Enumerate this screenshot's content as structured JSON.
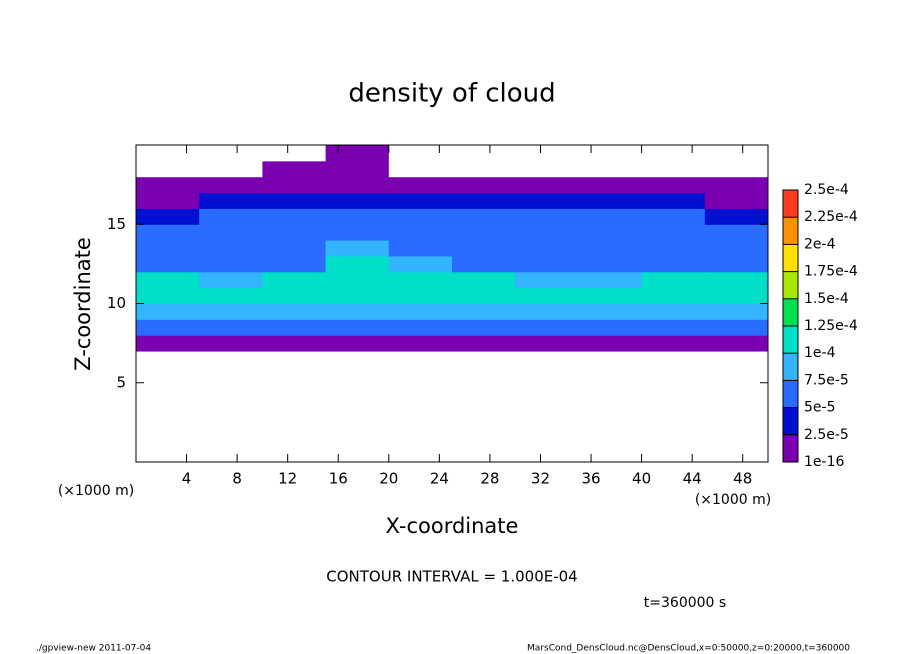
{
  "chart_data": {
    "type": "heatmap",
    "title": "density of cloud",
    "x_label": "X-coordinate",
    "y_label": "Z-coordinate",
    "x_unit_labels": [
      "(×1000 m)",
      "(×1000 m)"
    ],
    "contour_note": "CONTOUR INTERVAL = 1.000E-04",
    "time_note": "t=360000 s",
    "footer_left": "./gpview-new  2011-07-04",
    "footer_right": "MarsCond_DensCloud.nc@DensCloud,x=0:50000,z=0:20000,t=360000",
    "xlim": [
      0,
      50
    ],
    "xticks": [
      4,
      8,
      12,
      16,
      20,
      24,
      28,
      32,
      36,
      40,
      44,
      48
    ],
    "ylim": [
      0,
      20
    ],
    "yticks": [
      5,
      10,
      15
    ],
    "x": [
      2.5,
      7.5,
      12.5,
      17.5,
      22.5,
      27.5,
      32.5,
      37.5,
      42.5,
      47.5
    ],
    "y": [
      0.5,
      1.5,
      2.5,
      3.5,
      4.5,
      5.5,
      6.5,
      7.5,
      8.5,
      9.5,
      10.5,
      11.5,
      12.5,
      13.5,
      14.5,
      15.5,
      16.5,
      17.5,
      18.5,
      19.5
    ],
    "z": [
      [
        0,
        0,
        0,
        0,
        0,
        0,
        0,
        0,
        0,
        0
      ],
      [
        0,
        0,
        0,
        0,
        0,
        0,
        0,
        0,
        0,
        0
      ],
      [
        0,
        0,
        0,
        0,
        0,
        0,
        0,
        0,
        0,
        0
      ],
      [
        0,
        0,
        0,
        0,
        0,
        0,
        0,
        0,
        0,
        0
      ],
      [
        0,
        0,
        0,
        0,
        0,
        0,
        0,
        0,
        0,
        0
      ],
      [
        0,
        0,
        0,
        0,
        0,
        0,
        0,
        0,
        0,
        0
      ],
      [
        0,
        0,
        0,
        0,
        0,
        0,
        0,
        0,
        0,
        0
      ],
      [
        1e-05,
        1e-05,
        1e-05,
        1e-05,
        1e-05,
        1e-05,
        1e-05,
        1e-05,
        1e-05,
        1e-05
      ],
      [
        6e-05,
        6e-05,
        6e-05,
        6e-05,
        5e-05,
        6e-05,
        6e-05,
        6e-05,
        6e-05,
        6e-05
      ],
      [
        9e-05,
        9e-05,
        8e-05,
        9e-05,
        8e-05,
        9e-05,
        9e-05,
        9e-05,
        9e-05,
        9e-05
      ],
      [
        0.00011,
        0.00011,
        0.000105,
        0.00011,
        0.0001,
        0.000105,
        0.0001,
        0.000105,
        0.00011,
        0.00011
      ],
      [
        0.0001,
        8e-05,
        0.000105,
        0.000115,
        0.000105,
        0.0001,
        9e-05,
        9e-05,
        0.0001,
        0.0001
      ],
      [
        6e-05,
        6e-05,
        7e-05,
        0.00011,
        9e-05,
        7e-05,
        6e-05,
        6e-05,
        6e-05,
        6e-05
      ],
      [
        6e-05,
        6e-05,
        5e-05,
        8e-05,
        7e-05,
        6e-05,
        6e-05,
        6e-05,
        6e-05,
        6e-05
      ],
      [
        5e-05,
        6e-05,
        6e-05,
        6e-05,
        6e-05,
        6e-05,
        6e-05,
        6e-05,
        6e-05,
        5e-05
      ],
      [
        4e-05,
        5e-05,
        5e-05,
        5e-05,
        5e-05,
        5e-05,
        5e-05,
        5e-05,
        5e-05,
        4e-05
      ],
      [
        2e-05,
        3e-05,
        3e-05,
        3e-05,
        3e-05,
        3e-05,
        3e-05,
        3e-05,
        3e-05,
        2e-05
      ],
      [
        1e-05,
        1e-05,
        1e-05,
        1e-05,
        1e-05,
        1e-05,
        1e-05,
        1e-05,
        1e-05,
        1e-05
      ],
      [
        0,
        0,
        1e-05,
        1e-05,
        0,
        0,
        0,
        0,
        0,
        0
      ],
      [
        0,
        0,
        0,
        1e-05,
        0,
        0,
        0,
        0,
        0,
        0
      ]
    ],
    "color_levels": [
      {
        "value": 1e-16,
        "label": "1e-16"
      },
      {
        "value": 2.5e-05,
        "label": "2.5e-5"
      },
      {
        "value": 5e-05,
        "label": "5e-5"
      },
      {
        "value": 7.5e-05,
        "label": "7.5e-5"
      },
      {
        "value": 0.0001,
        "label": "1e-4"
      },
      {
        "value": 0.000125,
        "label": "1.25e-4"
      },
      {
        "value": 0.00015,
        "label": "1.5e-4"
      },
      {
        "value": 0.000175,
        "label": "1.75e-4"
      },
      {
        "value": 0.0002,
        "label": "2e-4"
      },
      {
        "value": 0.000225,
        "label": "2.25e-4"
      },
      {
        "value": 0.00025,
        "label": "2.5e-4"
      }
    ],
    "colors": [
      "#7a00b0",
      "#0010d0",
      "#2a6cff",
      "#32b4ff",
      "#00e0c8",
      "#00e050",
      "#a8e800",
      "#ffe000",
      "#ff9000",
      "#ff3c20"
    ]
  }
}
